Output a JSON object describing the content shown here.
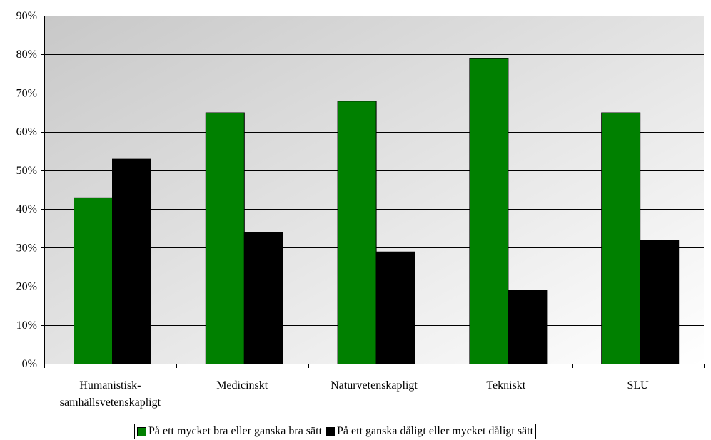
{
  "chart_data": {
    "type": "bar",
    "categories": [
      [
        "Humanistisk-",
        "samhällsvetenskapligt"
      ],
      [
        "Medicinskt"
      ],
      [
        "Naturvetenskapligt"
      ],
      [
        "Tekniskt"
      ],
      [
        "SLU"
      ]
    ],
    "series": [
      {
        "name": "På ett mycket bra eller ganska bra sätt",
        "color": "#008000",
        "values": [
          43,
          65,
          68,
          79,
          65
        ]
      },
      {
        "name": "På ett ganska dåligt eller mycket dåligt sätt",
        "color": "#000000",
        "values": [
          53,
          34,
          29,
          19,
          32
        ]
      }
    ],
    "ylim": [
      0,
      90
    ],
    "yticks": [
      0,
      10,
      20,
      30,
      40,
      50,
      60,
      70,
      80,
      90
    ],
    "ytick_labels": [
      "0%",
      "10%",
      "20%",
      "30%",
      "40%",
      "50%",
      "60%",
      "70%",
      "80%",
      "90%"
    ],
    "y_unit": "%",
    "title": "",
    "xlabel": "",
    "ylabel": "",
    "grid": true,
    "legend_position": "bottom",
    "background_gradient": [
      "#c8c8c8",
      "#ffffff"
    ]
  }
}
